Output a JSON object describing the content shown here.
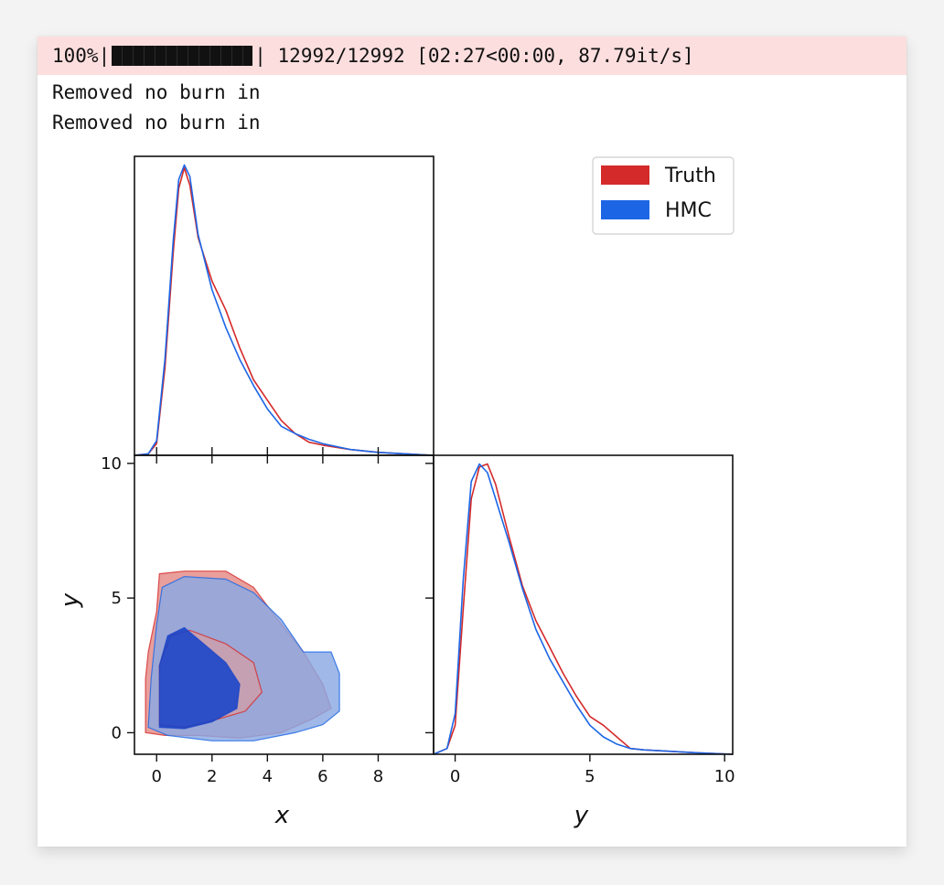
{
  "output": {
    "progress": {
      "percent_text": "100%",
      "fraction": 1.0,
      "count_text": "12992/12992",
      "timing_text": "[02:27<00:00, 87.79it/s]"
    },
    "log_lines": [
      "Removed no burn in",
      "Removed no burn in"
    ]
  },
  "colors": {
    "truth": "#d42a2a",
    "hmc": "#1c66e6",
    "truth_fill": "#e89a96",
    "hmc_fill": "#8aa8e3",
    "hmc_inner": "#1b45c8"
  },
  "chart_data": {
    "type": "corner",
    "legend": {
      "entries": [
        "Truth",
        "HMC"
      ],
      "placement": "upper-right"
    },
    "x_marginal": {
      "type": "line",
      "xlabel": "",
      "xlim": [
        -0.8,
        10
      ],
      "series": [
        {
          "name": "Truth",
          "x": [
            -0.8,
            -0.3,
            0,
            0.3,
            0.6,
            0.8,
            1.0,
            1.2,
            1.5,
            2.0,
            2.5,
            3.0,
            3.5,
            4.0,
            4.5,
            5.0,
            5.5,
            6.0,
            7.0,
            8.0,
            9.0,
            10.0
          ],
          "y": [
            0.0,
            0.005,
            0.04,
            0.3,
            0.7,
            0.92,
            0.99,
            0.93,
            0.75,
            0.6,
            0.5,
            0.37,
            0.26,
            0.19,
            0.12,
            0.075,
            0.045,
            0.035,
            0.02,
            0.01,
            0.005,
            0.0
          ]
        },
        {
          "name": "HMC",
          "x": [
            -0.8,
            -0.3,
            0,
            0.3,
            0.6,
            0.8,
            1.0,
            1.2,
            1.5,
            2.0,
            2.5,
            3.0,
            3.5,
            4.0,
            4.5,
            5.0,
            5.5,
            6.0,
            7.0,
            8.0,
            9.0,
            10.0
          ],
          "y": [
            0.0,
            0.005,
            0.05,
            0.33,
            0.74,
            0.95,
            1.0,
            0.96,
            0.76,
            0.57,
            0.44,
            0.33,
            0.24,
            0.16,
            0.1,
            0.075,
            0.055,
            0.04,
            0.02,
            0.01,
            0.005,
            0.0
          ]
        }
      ]
    },
    "joint": {
      "type": "contour",
      "xlabel": "x",
      "ylabel": "y",
      "xlim": [
        -0.8,
        10
      ],
      "ylim": [
        -0.8,
        10.3
      ],
      "xticks": [
        0,
        2,
        4,
        6,
        8
      ],
      "yticks": [
        0,
        5,
        10
      ],
      "contours": [
        {
          "series": "Truth",
          "level": "outer",
          "points": [
            [
              -0.4,
              2.0
            ],
            [
              -0.4,
              0.0
            ],
            [
              0.3,
              -0.1
            ],
            [
              1.5,
              -0.1
            ],
            [
              3.0,
              -0.2
            ],
            [
              4.5,
              0.0
            ],
            [
              5.6,
              0.5
            ],
            [
              6.3,
              0.9
            ],
            [
              6.0,
              1.8
            ],
            [
              5.3,
              3.0
            ],
            [
              4.3,
              4.3
            ],
            [
              3.5,
              5.4
            ],
            [
              2.5,
              6.0
            ],
            [
              1.0,
              6.0
            ],
            [
              0.1,
              5.9
            ],
            [
              0.0,
              4.5
            ],
            [
              -0.3,
              3.0
            ]
          ]
        },
        {
          "series": "HMC",
          "level": "outer",
          "points": [
            [
              -0.2,
              2.0
            ],
            [
              -0.3,
              0.2
            ],
            [
              0.4,
              -0.1
            ],
            [
              2.0,
              -0.3
            ],
            [
              3.5,
              -0.3
            ],
            [
              5.0,
              0.0
            ],
            [
              6.0,
              0.3
            ],
            [
              6.6,
              0.8
            ],
            [
              6.6,
              2.2
            ],
            [
              6.3,
              3.0
            ],
            [
              5.3,
              3.0
            ],
            [
              4.5,
              4.2
            ],
            [
              3.5,
              5.2
            ],
            [
              2.5,
              5.7
            ],
            [
              1.0,
              5.8
            ],
            [
              0.2,
              5.4
            ],
            [
              0.0,
              4.0
            ]
          ]
        },
        {
          "series": "Truth",
          "level": "inner",
          "points": [
            [
              0.1,
              2.5
            ],
            [
              0.1,
              0.3
            ],
            [
              1.0,
              0.2
            ],
            [
              2.2,
              0.5
            ],
            [
              3.2,
              0.8
            ],
            [
              3.8,
              1.5
            ],
            [
              3.5,
              2.6
            ],
            [
              2.5,
              3.3
            ],
            [
              1.2,
              3.8
            ],
            [
              0.5,
              3.6
            ]
          ]
        },
        {
          "series": "HMC",
          "level": "inner",
          "points": [
            [
              0.1,
              2.5
            ],
            [
              0.1,
              0.2
            ],
            [
              1.0,
              0.15
            ],
            [
              2.0,
              0.4
            ],
            [
              2.9,
              0.9
            ],
            [
              3.0,
              1.8
            ],
            [
              2.5,
              2.6
            ],
            [
              1.7,
              3.3
            ],
            [
              1.0,
              3.9
            ],
            [
              0.4,
              3.6
            ]
          ]
        }
      ]
    },
    "y_marginal": {
      "type": "line",
      "xlabel": "y",
      "xlim": [
        -0.8,
        10.3
      ],
      "xticks": [
        0,
        5,
        10
      ],
      "series": [
        {
          "name": "Truth",
          "x": [
            -0.8,
            -0.3,
            0,
            0.3,
            0.6,
            0.9,
            1.2,
            1.5,
            2.0,
            2.5,
            3.0,
            3.5,
            4.0,
            4.5,
            5.0,
            5.5,
            6.0,
            6.5,
            7.0,
            8.0,
            9.0,
            10.3
          ],
          "y": [
            0.0,
            0.02,
            0.1,
            0.5,
            0.88,
            0.99,
            1.0,
            0.93,
            0.75,
            0.58,
            0.46,
            0.37,
            0.28,
            0.2,
            0.13,
            0.1,
            0.06,
            0.02,
            0.015,
            0.01,
            0.005,
            0.0
          ]
        },
        {
          "name": "HMC",
          "x": [
            -0.8,
            -0.3,
            0,
            0.3,
            0.6,
            0.9,
            1.2,
            1.5,
            2.0,
            2.5,
            3.0,
            3.5,
            4.0,
            4.5,
            5.0,
            5.5,
            6.0,
            6.5,
            7.0,
            8.0,
            9.0,
            10.3
          ],
          "y": [
            0.0,
            0.02,
            0.14,
            0.6,
            0.94,
            1.0,
            0.97,
            0.88,
            0.73,
            0.57,
            0.43,
            0.33,
            0.25,
            0.17,
            0.1,
            0.06,
            0.035,
            0.02,
            0.015,
            0.01,
            0.005,
            0.0
          ]
        }
      ]
    }
  }
}
